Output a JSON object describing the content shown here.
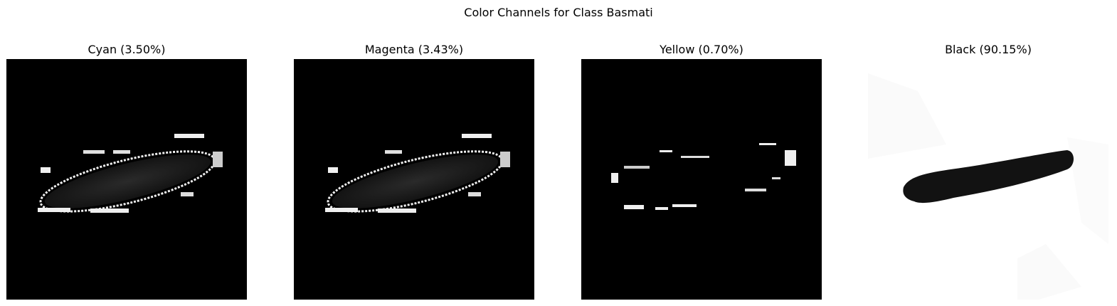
{
  "figure": {
    "suptitle": "Color Channels for Class Basmati"
  },
  "panels": [
    {
      "title": "Cyan (3.50%)",
      "channel": "cyan",
      "percent": 3.5
    },
    {
      "title": "Magenta (3.43%)",
      "channel": "magenta",
      "percent": 3.43
    },
    {
      "title": "Yellow (0.70%)",
      "channel": "yellow",
      "percent": 0.7
    },
    {
      "title": "Black (90.15%)",
      "channel": "black",
      "percent": 90.15
    }
  ],
  "colors": {
    "background_dark": "#000000",
    "background_light": "#ffffff",
    "grain_dark": "#1e1e1e",
    "noise": "#f0f0f0"
  }
}
